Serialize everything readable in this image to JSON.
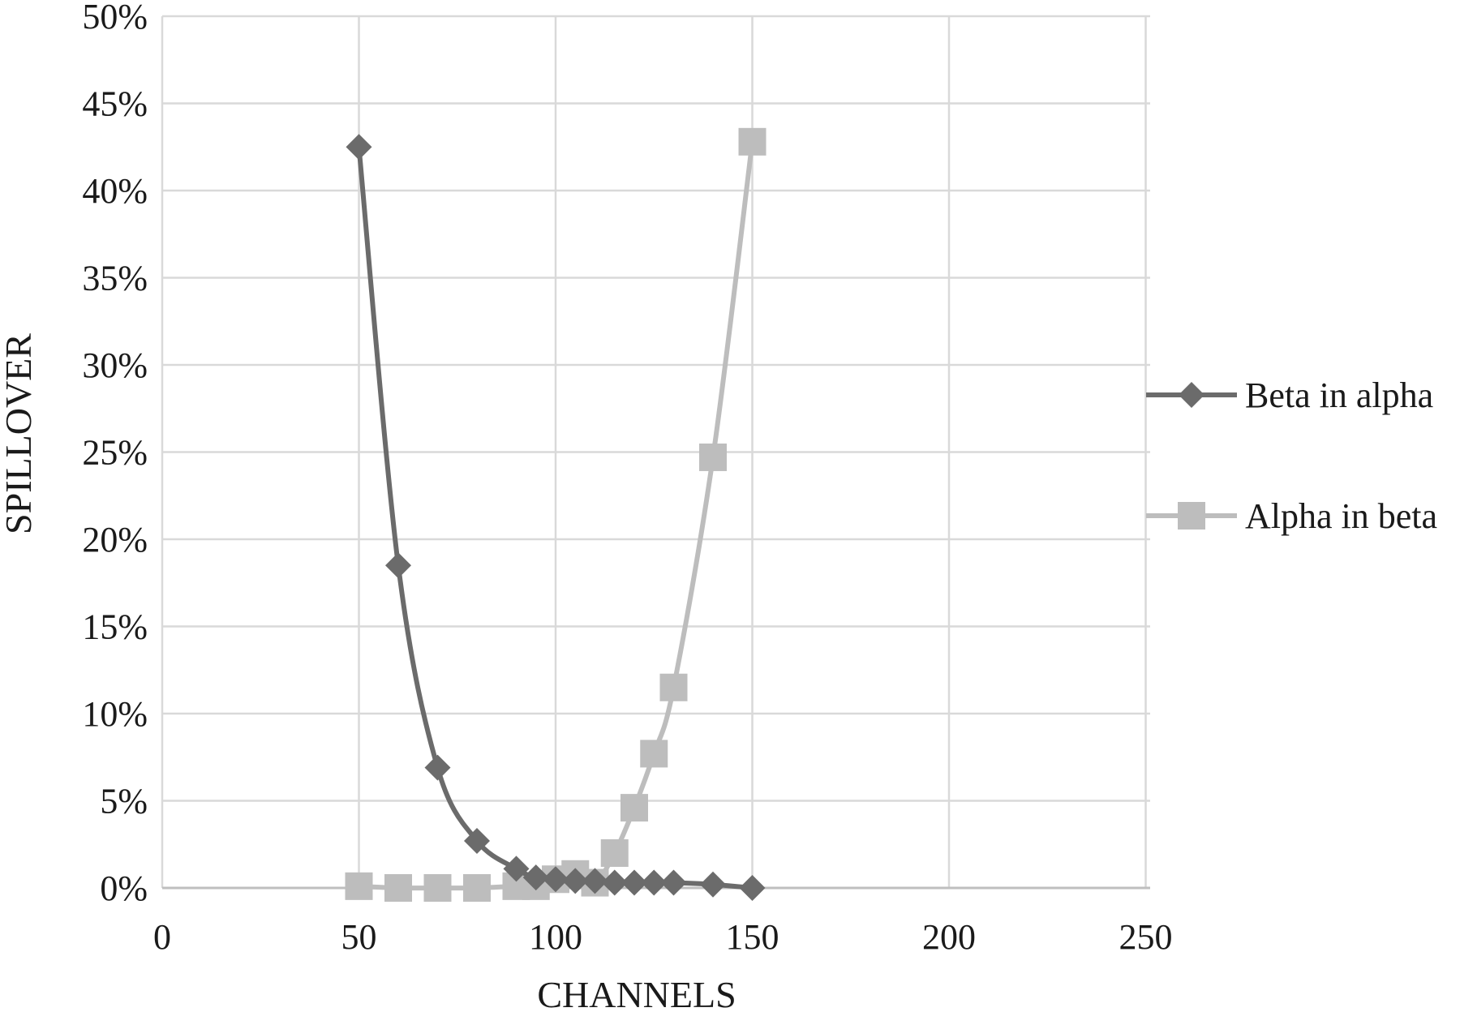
{
  "chart_data": {
    "type": "scatter",
    "title": "",
    "xlabel": "CHANNELS",
    "ylabel": "SPILLOVER",
    "xlim": [
      0,
      260
    ],
    "ylim": [
      0,
      50
    ],
    "xticks": [
      0,
      50,
      100,
      150,
      200,
      250
    ],
    "yticks": [
      0,
      5,
      10,
      15,
      20,
      25,
      30,
      35,
      40,
      45,
      50
    ],
    "x_tick_labels": [
      "0",
      "50",
      "100",
      "150",
      "200",
      "250"
    ],
    "y_tick_labels": [
      "0%",
      "5%",
      "10%",
      "15%",
      "20%",
      "25%",
      "30%",
      "35%",
      "40%",
      "45%",
      "50%"
    ],
    "grid": true,
    "smooth_lines": true,
    "legend_position": "right",
    "series": [
      {
        "name": "Beta in alpha",
        "marker": "diamond",
        "color": "#6b6b6b",
        "x": [
          50,
          60,
          70,
          80,
          90,
          95,
          100,
          105,
          110,
          115,
          120,
          125,
          130,
          140,
          150
        ],
        "y": [
          42.5,
          18.5,
          6.9,
          2.7,
          1.1,
          0.6,
          0.5,
          0.4,
          0.4,
          0.3,
          0.3,
          0.3,
          0.3,
          0.2,
          0.0
        ]
      },
      {
        "name": "Alpha in beta",
        "marker": "square",
        "color": "#bdbdbd",
        "x": [
          50,
          60,
          70,
          80,
          90,
          95,
          100,
          105,
          110,
          115,
          120,
          125,
          130,
          140,
          150
        ],
        "y": [
          0.1,
          0.0,
          0.0,
          0.0,
          0.1,
          0.1,
          0.5,
          0.8,
          0.3,
          2.0,
          4.6,
          7.7,
          11.5,
          24.7,
          42.8
        ]
      }
    ]
  }
}
